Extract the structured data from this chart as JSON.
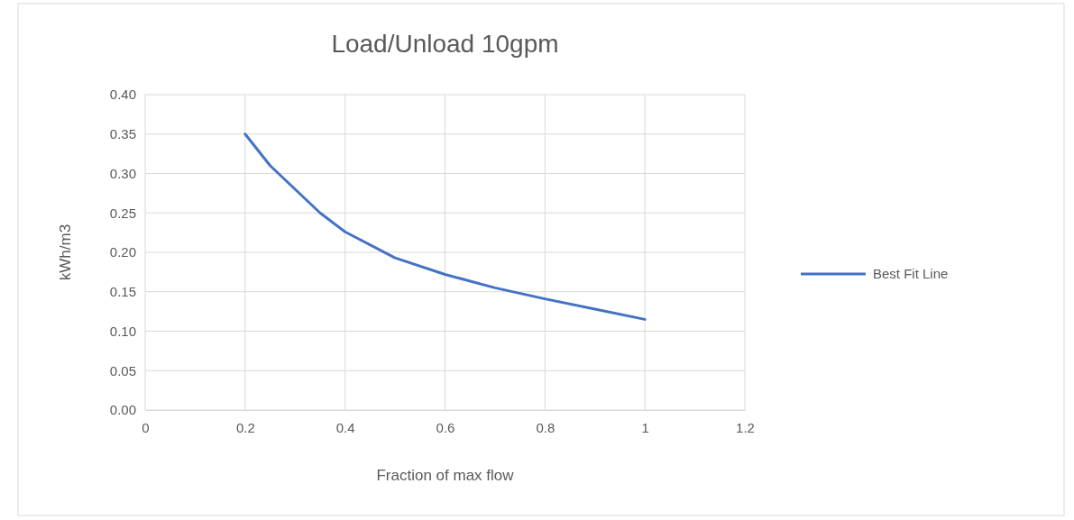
{
  "chart_data": {
    "type": "line",
    "title": "Load/Unload 10gpm",
    "xlabel": "Fraction of max flow",
    "ylabel": "kWh/m3",
    "x": [
      0.2,
      0.25,
      0.3,
      0.35,
      0.4,
      0.5,
      0.6,
      0.7,
      0.8,
      0.9,
      1.0
    ],
    "series": [
      {
        "name": "Best Fit Line",
        "color": "#4472c4",
        "values": [
          0.35,
          0.31,
          0.28,
          0.25,
          0.226,
          0.193,
          0.172,
          0.155,
          0.141,
          0.128,
          0.115
        ]
      }
    ],
    "xlim": [
      0,
      1.2
    ],
    "xticks": [
      0,
      0.2,
      0.4,
      0.6,
      0.8,
      1,
      1.2
    ],
    "ylim": [
      0,
      0.4
    ],
    "yticks": [
      {
        "value": 0,
        "label": "0.00"
      },
      {
        "value": 0.05,
        "label": "0.05"
      },
      {
        "value": 0.1,
        "label": "0.10"
      },
      {
        "value": 0.15,
        "label": "0.15"
      },
      {
        "value": 0.2,
        "label": "0.20"
      },
      {
        "value": 0.25,
        "label": "0.25"
      },
      {
        "value": 0.3,
        "label": "0.30"
      },
      {
        "value": 0.35,
        "label": "0.35"
      },
      {
        "value": 0.4,
        "label": "0.40"
      }
    ],
    "grid": true,
    "legend": "right",
    "marker": "none",
    "line_style": "solid"
  }
}
